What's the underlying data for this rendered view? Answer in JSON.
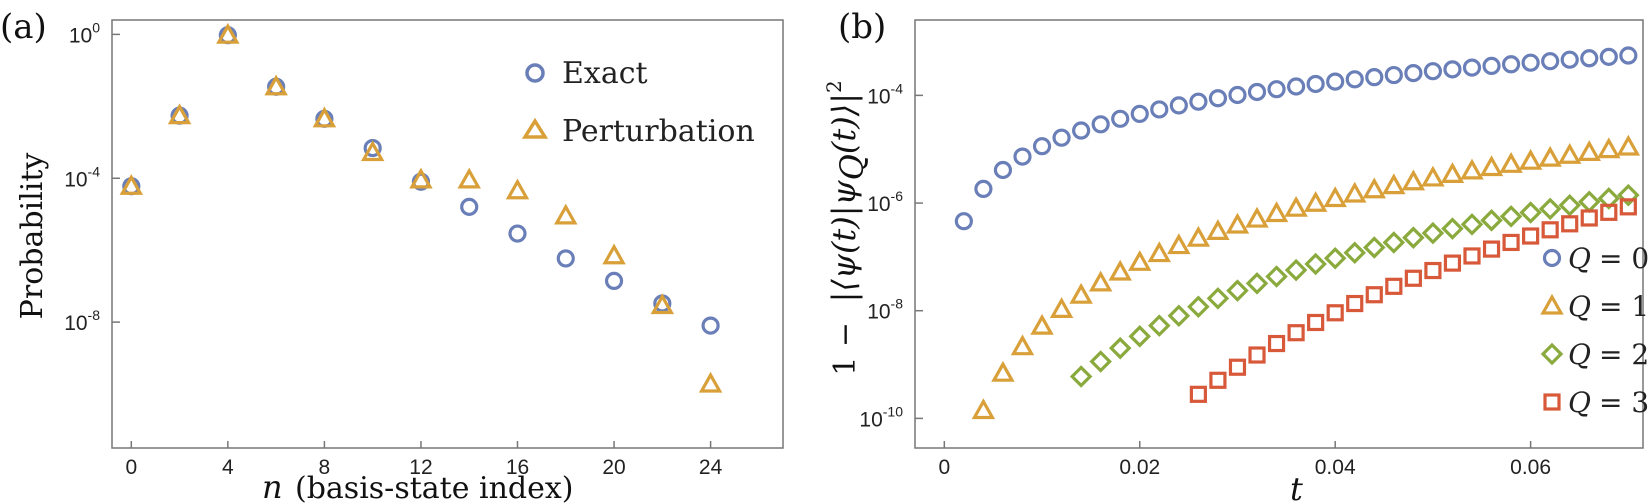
{
  "colors": {
    "exact": "#6a7fb8",
    "perturbation": "#d9a03a",
    "q0": "#6a7fb8",
    "q1": "#d9a03a",
    "q2": "#8aaa3e",
    "q3": "#d8593a"
  },
  "chart_data": [
    {
      "type": "scatter",
      "panel_label": "(a)",
      "title": "",
      "xlabel_var": "n",
      "xlabel_rest": "(basis-state index)",
      "ylabel": "Probability",
      "xlim": [
        -0.8,
        27
      ],
      "ylim_log10": [
        -11.5,
        0.4
      ],
      "x_ticks": [
        "0",
        "4",
        "8",
        "12",
        "16",
        "20",
        "24"
      ],
      "x_tick_values": [
        0,
        4,
        8,
        12,
        16,
        20,
        24
      ],
      "y_ticks": [
        {
          "mantissa": "10",
          "exp": "0",
          "value": 1
        },
        {
          "mantissa": "10",
          "exp": "-4",
          "value": 0.0001
        },
        {
          "mantissa": "10",
          "exp": "-8",
          "value": 1e-08
        }
      ],
      "legend": [
        "Exact",
        "Perturbation"
      ],
      "series": [
        {
          "name": "Exact",
          "marker": "circle",
          "x": [
            0,
            2,
            4,
            6,
            8,
            10,
            12,
            14,
            16,
            18,
            20,
            22,
            24
          ],
          "y": [
            6e-05,
            0.0055,
            0.95,
            0.035,
            0.0045,
            0.00069,
            8e-05,
            1.6e-05,
            2.9e-06,
            5.9e-07,
            1.4e-07,
            3.3e-08,
            8e-09
          ]
        },
        {
          "name": "Perturbation",
          "marker": "triangle",
          "x": [
            0,
            2,
            4,
            6,
            8,
            10,
            12,
            14,
            16,
            18,
            20,
            22,
            24
          ],
          "y": [
            6e-05,
            0.0055,
            0.95,
            0.035,
            0.0045,
            0.00052,
            9e-05,
            9e-05,
            4.5e-05,
            9e-06,
            7e-07,
            2.9e-08,
            1.9e-10
          ]
        }
      ]
    },
    {
      "type": "scatter",
      "panel_label": "(b)",
      "title": "",
      "xlabel": "t",
      "ylabel_prefix": "1 −",
      "ylabel_expr": "|⟨ψ(t)|ψ",
      "ylabel_sub": "Q",
      "ylabel_tail": "(t)⟩|",
      "ylabel_sup": "2",
      "xlim": [
        -0.003,
        0.0715
      ],
      "ylim_log10": [
        -10.55,
        -2.6
      ],
      "x_ticks": [
        "0",
        "0.02",
        "0.04",
        "0.06"
      ],
      "x_tick_values": [
        0,
        0.02,
        0.04,
        0.06
      ],
      "y_ticks": [
        {
          "mantissa": "10",
          "exp": "-4",
          "value": 0.0001
        },
        {
          "mantissa": "10",
          "exp": "-6",
          "value": 1e-06
        },
        {
          "mantissa": "10",
          "exp": "-8",
          "value": 1e-08
        },
        {
          "mantissa": "10",
          "exp": "-10",
          "value": 1e-10
        }
      ],
      "series": [
        {
          "name": "Q = 0",
          "q": "0",
          "marker": "circle",
          "t_start": 0.002,
          "t_end": 0.07,
          "y_start": 4.6e-07,
          "y_end": 0.00055
        },
        {
          "name": "Q = 1",
          "q": "1",
          "marker": "triangle",
          "t_start": 0.004,
          "t_end": 0.07,
          "y_start": 1.4e-10,
          "y_end": 1.1e-05
        },
        {
          "name": "Q = 2",
          "q": "2",
          "marker": "diamond",
          "t_start": 0.014,
          "t_end": 0.07,
          "y_start": 6e-10,
          "y_end": 1.4e-06
        },
        {
          "name": "Q = 3",
          "q": "3",
          "marker": "square",
          "t_start": 0.026,
          "t_end": 0.07,
          "y_start": 2.8e-10,
          "y_end": 8.5e-07
        }
      ],
      "legend": [
        {
          "var": "Q",
          "eq": "= 0"
        },
        {
          "var": "Q",
          "eq": "= 1"
        },
        {
          "var": "Q",
          "eq": "= 2"
        },
        {
          "var": "Q",
          "eq": "= 3"
        }
      ]
    }
  ]
}
